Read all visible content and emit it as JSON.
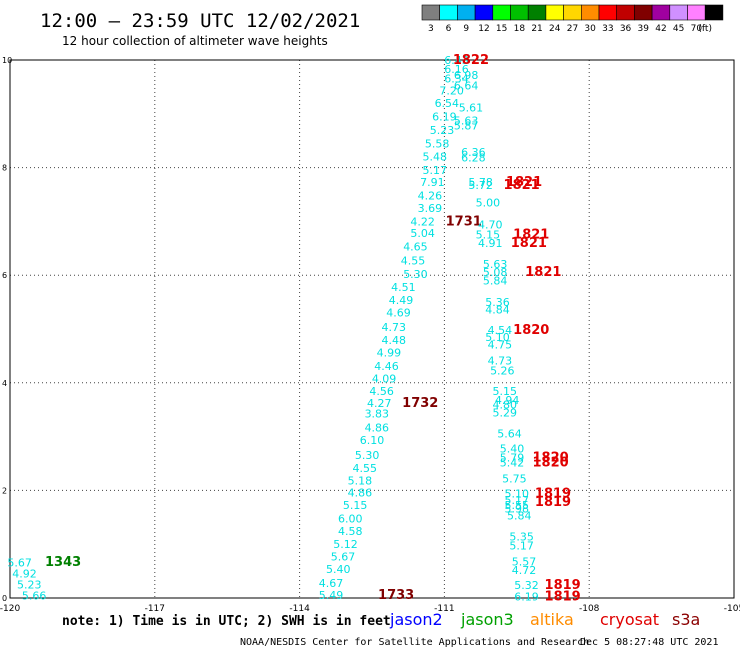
{
  "header": {
    "title": "12:00 – 23:59 UTC 12/02/2021",
    "subtitle": "12 hour collection of altimeter wave heights"
  },
  "colorbar": {
    "unit": "(ft)",
    "entries": [
      {
        "label": "3",
        "color": "#7f7f7f"
      },
      {
        "label": "6",
        "color": "#00ffff"
      },
      {
        "label": "9",
        "color": "#00b0f0"
      },
      {
        "label": "12",
        "color": "#0000ff"
      },
      {
        "label": "15",
        "color": "#00ff00"
      },
      {
        "label": "18",
        "color": "#00c000"
      },
      {
        "label": "21",
        "color": "#008000"
      },
      {
        "label": "24",
        "color": "#ffff00"
      },
      {
        "label": "27",
        "color": "#ffd700"
      },
      {
        "label": "30",
        "color": "#ff8c00"
      },
      {
        "label": "33",
        "color": "#ff0000"
      },
      {
        "label": "36",
        "color": "#c00000"
      },
      {
        "label": "39",
        "color": "#800000"
      },
      {
        "label": "42",
        "color": "#a000a0"
      },
      {
        "label": "45",
        "color": "#d090ff"
      },
      {
        "label": "70",
        "color": "#ff80ff"
      },
      {
        "label": "",
        "color": "#000000"
      }
    ]
  },
  "footer": {
    "note": "note: 1) Time is in UTC; 2) SWH is in feet",
    "credit": "NOAA/NESDIS Center for Satellite Applications and Research",
    "timestamp": "Dec  5 08:27:48 UTC 2021",
    "missions": [
      {
        "label": "jason2",
        "color": "#0000ff"
      },
      {
        "label": "jason3",
        "color": "#00a000"
      },
      {
        "label": "altika",
        "color": "#ff8c00"
      },
      {
        "label": "cryosat",
        "color": "#e00000"
      },
      {
        "label": "s3a",
        "color": "#8b0000"
      }
    ]
  },
  "chart_data": {
    "type": "scatter",
    "xlim": [
      -120,
      -105
    ],
    "ylim": [
      0,
      10
    ],
    "xticks": [
      {
        "v": -120,
        "label": "-120"
      },
      {
        "v": -117,
        "label": "-117"
      },
      {
        "v": -114,
        "label": "-114"
      },
      {
        "v": -111,
        "label": "-111"
      },
      {
        "v": -108,
        "label": "-108"
      },
      {
        "v": -105,
        "label": "-105"
      }
    ],
    "yticks": [
      {
        "v": 0,
        "label": "0"
      },
      {
        "v": 2,
        "label": "2"
      },
      {
        "v": 4,
        "label": "4"
      },
      {
        "v": 6,
        "label": "6"
      },
      {
        "v": 8,
        "label": "8"
      },
      {
        "v": 10,
        "label": "10"
      }
    ],
    "grid": true,
    "points": [
      {
        "x": -119.5,
        "y": 0.05,
        "label": "5.66",
        "color": "#00e0e0"
      },
      {
        "x": -119.6,
        "y": 0.25,
        "label": "5.23",
        "color": "#00e0e0"
      },
      {
        "x": -119.7,
        "y": 0.46,
        "label": "4.92",
        "color": "#00e0e0"
      },
      {
        "x": -119.8,
        "y": 0.66,
        "label": "5.67",
        "color": "#00e0e0"
      },
      {
        "x": -118.9,
        "y": 0.67,
        "label": "1343",
        "color": "#008000",
        "bold": true
      },
      {
        "x": -113.35,
        "y": 0.06,
        "label": "5.49",
        "color": "#00e0e0"
      },
      {
        "x": -112.0,
        "y": 0.06,
        "label": "1733",
        "color": "#800000",
        "bold": true
      },
      {
        "x": -113.35,
        "y": 0.28,
        "label": "4.67",
        "color": "#00e0e0"
      },
      {
        "x": -113.2,
        "y": 0.54,
        "label": "5.40",
        "color": "#00e0e0"
      },
      {
        "x": -113.1,
        "y": 0.77,
        "label": "5.67",
        "color": "#00e0e0"
      },
      {
        "x": -113.05,
        "y": 1.0,
        "label": "5.12",
        "color": "#00e0e0"
      },
      {
        "x": -112.95,
        "y": 1.25,
        "label": "4.58",
        "color": "#00e0e0"
      },
      {
        "x": -112.95,
        "y": 1.48,
        "label": "6.00",
        "color": "#00e0e0"
      },
      {
        "x": -112.85,
        "y": 1.73,
        "label": "5.15",
        "color": "#00e0e0"
      },
      {
        "x": -112.75,
        "y": 1.96,
        "label": "4.86",
        "color": "#00e0e0"
      },
      {
        "x": -112.75,
        "y": 2.18,
        "label": "5.18",
        "color": "#00e0e0"
      },
      {
        "x": -112.65,
        "y": 2.42,
        "label": "4.55",
        "color": "#00e0e0"
      },
      {
        "x": -112.6,
        "y": 2.66,
        "label": "5.30",
        "color": "#00e0e0"
      },
      {
        "x": -112.5,
        "y": 2.94,
        "label": "6.10",
        "color": "#00e0e0"
      },
      {
        "x": -112.4,
        "y": 3.17,
        "label": "4.86",
        "color": "#00e0e0"
      },
      {
        "x": -112.4,
        "y": 3.43,
        "label": "3.83",
        "color": "#00e0e0"
      },
      {
        "x": -112.35,
        "y": 3.62,
        "label": "4.27",
        "color": "#00e0e0"
      },
      {
        "x": -111.5,
        "y": 3.62,
        "label": "1732",
        "color": "#800000",
        "bold": true
      },
      {
        "x": -112.3,
        "y": 3.85,
        "label": "4.56",
        "color": "#00e0e0"
      },
      {
        "x": -112.25,
        "y": 4.08,
        "label": "4.09",
        "color": "#00e0e0"
      },
      {
        "x": -112.2,
        "y": 4.31,
        "label": "4.46",
        "color": "#00e0e0"
      },
      {
        "x": -112.15,
        "y": 4.56,
        "label": "4.99",
        "color": "#00e0e0"
      },
      {
        "x": -112.05,
        "y": 4.8,
        "label": "4.48",
        "color": "#00e0e0"
      },
      {
        "x": -112.05,
        "y": 5.04,
        "label": "4.73",
        "color": "#00e0e0"
      },
      {
        "x": -111.95,
        "y": 5.31,
        "label": "4.69",
        "color": "#00e0e0"
      },
      {
        "x": -111.9,
        "y": 5.54,
        "label": "4.49",
        "color": "#00e0e0"
      },
      {
        "x": -111.85,
        "y": 5.78,
        "label": "4.51",
        "color": "#00e0e0"
      },
      {
        "x": -111.6,
        "y": 6.02,
        "label": "5.30",
        "color": "#00e0e0"
      },
      {
        "x": -111.65,
        "y": 6.27,
        "label": "4.55",
        "color": "#00e0e0"
      },
      {
        "x": -111.6,
        "y": 6.53,
        "label": "4.65",
        "color": "#00e0e0"
      },
      {
        "x": -111.45,
        "y": 6.78,
        "label": "5.04",
        "color": "#00e0e0"
      },
      {
        "x": -111.45,
        "y": 7.0,
        "label": "4.22",
        "color": "#00e0e0"
      },
      {
        "x": -110.6,
        "y": 7.0,
        "label": "1731",
        "color": "#800000",
        "bold": true
      },
      {
        "x": -111.3,
        "y": 7.25,
        "label": "3.69",
        "color": "#00e0e0"
      },
      {
        "x": -111.3,
        "y": 7.48,
        "label": "4.26",
        "color": "#00e0e0"
      },
      {
        "x": -111.25,
        "y": 7.73,
        "label": "7.91",
        "color": "#00e0e0"
      },
      {
        "x": -111.2,
        "y": 7.96,
        "label": "5.17",
        "color": "#00e0e0"
      },
      {
        "x": -111.2,
        "y": 8.21,
        "label": "5.48",
        "color": "#00e0e0"
      },
      {
        "x": -111.15,
        "y": 8.45,
        "label": "5.58",
        "color": "#00e0e0"
      },
      {
        "x": -111.05,
        "y": 8.7,
        "label": "5.23",
        "color": "#00e0e0"
      },
      {
        "x": -111.0,
        "y": 8.95,
        "label": "6.19",
        "color": "#00e0e0"
      },
      {
        "x": -110.95,
        "y": 9.2,
        "label": "6.54",
        "color": "#00e0e0"
      },
      {
        "x": -110.85,
        "y": 9.43,
        "label": "7.20",
        "color": "#00e0e0"
      },
      {
        "x": -110.75,
        "y": 9.66,
        "label": "6.34",
        "color": "#00e0e0"
      },
      {
        "x": -110.75,
        "y": 9.83,
        "label": "6.16",
        "color": "#00e0e0"
      },
      {
        "x": -110.75,
        "y": 10.0,
        "label": "6.43",
        "color": "#00e0e0"
      },
      {
        "x": -110.45,
        "y": 10.0,
        "label": "1822",
        "color": "#e00000",
        "bold": true
      },
      {
        "x": -110.55,
        "y": 9.53,
        "label": "6.64",
        "color": "#00e0e0"
      },
      {
        "x": -110.55,
        "y": 9.72,
        "label": "6.98",
        "color": "#00e0e0"
      },
      {
        "x": -110.45,
        "y": 9.12,
        "label": "5.61",
        "color": "#00e0e0"
      },
      {
        "x": -110.55,
        "y": 8.88,
        "label": "5.63",
        "color": "#00e0e0"
      },
      {
        "x": -110.55,
        "y": 8.78,
        "label": "5.87",
        "color": "#00e0e0"
      },
      {
        "x": -110.4,
        "y": 8.29,
        "label": "6.36",
        "color": "#00e0e0"
      },
      {
        "x": -110.4,
        "y": 8.19,
        "label": "6.28",
        "color": "#00e0e0"
      },
      {
        "x": -110.25,
        "y": 7.73,
        "label": "5.78",
        "color": "#00e0e0"
      },
      {
        "x": -110.25,
        "y": 7.68,
        "label": "5.72",
        "color": "#00e0e0"
      },
      {
        "x": -109.35,
        "y": 7.73,
        "label": "1821",
        "color": "#e00000",
        "bold": true
      },
      {
        "x": -109.4,
        "y": 7.68,
        "label": "1821",
        "color": "#e00000",
        "bold": true
      },
      {
        "x": -110.1,
        "y": 7.35,
        "label": "5.00",
        "color": "#00e0e0"
      },
      {
        "x": -110.05,
        "y": 6.94,
        "label": "4.70",
        "color": "#00e0e0"
      },
      {
        "x": -110.1,
        "y": 6.76,
        "label": "5.15",
        "color": "#00e0e0"
      },
      {
        "x": -110.05,
        "y": 6.6,
        "label": "4.91",
        "color": "#00e0e0"
      },
      {
        "x": -109.2,
        "y": 6.76,
        "label": "1821",
        "color": "#e00000",
        "bold": true
      },
      {
        "x": -109.25,
        "y": 6.6,
        "label": "1821",
        "color": "#e00000",
        "bold": true
      },
      {
        "x": -109.95,
        "y": 6.21,
        "label": "5.63",
        "color": "#00e0e0"
      },
      {
        "x": -109.95,
        "y": 6.06,
        "label": "5.08",
        "color": "#00e0e0"
      },
      {
        "x": -109.95,
        "y": 5.9,
        "label": "5.84",
        "color": "#00e0e0"
      },
      {
        "x": -108.95,
        "y": 6.06,
        "label": "1821",
        "color": "#e00000",
        "bold": true
      },
      {
        "x": -109.9,
        "y": 5.5,
        "label": "5.36",
        "color": "#00e0e0"
      },
      {
        "x": -109.9,
        "y": 5.36,
        "label": "4.84",
        "color": "#00e0e0"
      },
      {
        "x": -109.85,
        "y": 4.98,
        "label": "4.54",
        "color": "#00e0e0"
      },
      {
        "x": -109.9,
        "y": 4.85,
        "label": "5.10",
        "color": "#00e0e0"
      },
      {
        "x": -109.85,
        "y": 4.71,
        "label": "4.75",
        "color": "#00e0e0"
      },
      {
        "x": -109.2,
        "y": 4.98,
        "label": "1820",
        "color": "#e00000",
        "bold": true
      },
      {
        "x": -109.85,
        "y": 4.41,
        "label": "4.73",
        "color": "#00e0e0"
      },
      {
        "x": -109.8,
        "y": 4.23,
        "label": "5.26",
        "color": "#00e0e0"
      },
      {
        "x": -109.75,
        "y": 3.85,
        "label": "5.15",
        "color": "#00e0e0"
      },
      {
        "x": -109.7,
        "y": 3.68,
        "label": "4.94",
        "color": "#00e0e0"
      },
      {
        "x": -109.75,
        "y": 3.6,
        "label": "4.80",
        "color": "#00e0e0"
      },
      {
        "x": -109.75,
        "y": 3.45,
        "label": "5.29",
        "color": "#00e0e0"
      },
      {
        "x": -109.65,
        "y": 3.06,
        "label": "5.64",
        "color": "#00e0e0"
      },
      {
        "x": -109.6,
        "y": 2.78,
        "label": "5.40",
        "color": "#00e0e0"
      },
      {
        "x": -109.6,
        "y": 2.61,
        "label": "5.79",
        "color": "#00e0e0"
      },
      {
        "x": -109.6,
        "y": 2.52,
        "label": "5.42",
        "color": "#00e0e0"
      },
      {
        "x": -108.8,
        "y": 2.61,
        "label": "1820",
        "color": "#e00000",
        "bold": true
      },
      {
        "x": -108.8,
        "y": 2.52,
        "label": "1820",
        "color": "#e00000",
        "bold": true
      },
      {
        "x": -109.55,
        "y": 2.22,
        "label": "5.75",
        "color": "#00e0e0"
      },
      {
        "x": -109.5,
        "y": 1.94,
        "label": "5.10",
        "color": "#00e0e0"
      },
      {
        "x": -109.5,
        "y": 1.82,
        "label": "5.17",
        "color": "#00e0e0"
      },
      {
        "x": -109.5,
        "y": 1.73,
        "label": "5.55",
        "color": "#00e0e0"
      },
      {
        "x": -109.5,
        "y": 1.66,
        "label": "5.98",
        "color": "#00e0e0"
      },
      {
        "x": -109.45,
        "y": 1.53,
        "label": "5.84",
        "color": "#00e0e0"
      },
      {
        "x": -108.75,
        "y": 1.94,
        "label": "1819",
        "color": "#e00000",
        "bold": true
      },
      {
        "x": -108.75,
        "y": 1.78,
        "label": "1819",
        "color": "#e00000",
        "bold": true
      },
      {
        "x": -109.4,
        "y": 1.14,
        "label": "5.35",
        "color": "#00e0e0"
      },
      {
        "x": -109.4,
        "y": 0.98,
        "label": "5.17",
        "color": "#00e0e0"
      },
      {
        "x": -109.35,
        "y": 0.68,
        "label": "5.57",
        "color": "#00e0e0"
      },
      {
        "x": -109.35,
        "y": 0.52,
        "label": "4.72",
        "color": "#00e0e0"
      },
      {
        "x": -109.3,
        "y": 0.24,
        "label": "5.32",
        "color": "#00e0e0"
      },
      {
        "x": -109.3,
        "y": 0.03,
        "label": "6.19",
        "color": "#00e0e0"
      },
      {
        "x": -108.55,
        "y": 0.24,
        "label": "1819",
        "color": "#e00000",
        "bold": true
      },
      {
        "x": -108.55,
        "y": 0.03,
        "label": "1819",
        "color": "#e00000",
        "bold": true
      }
    ]
  }
}
